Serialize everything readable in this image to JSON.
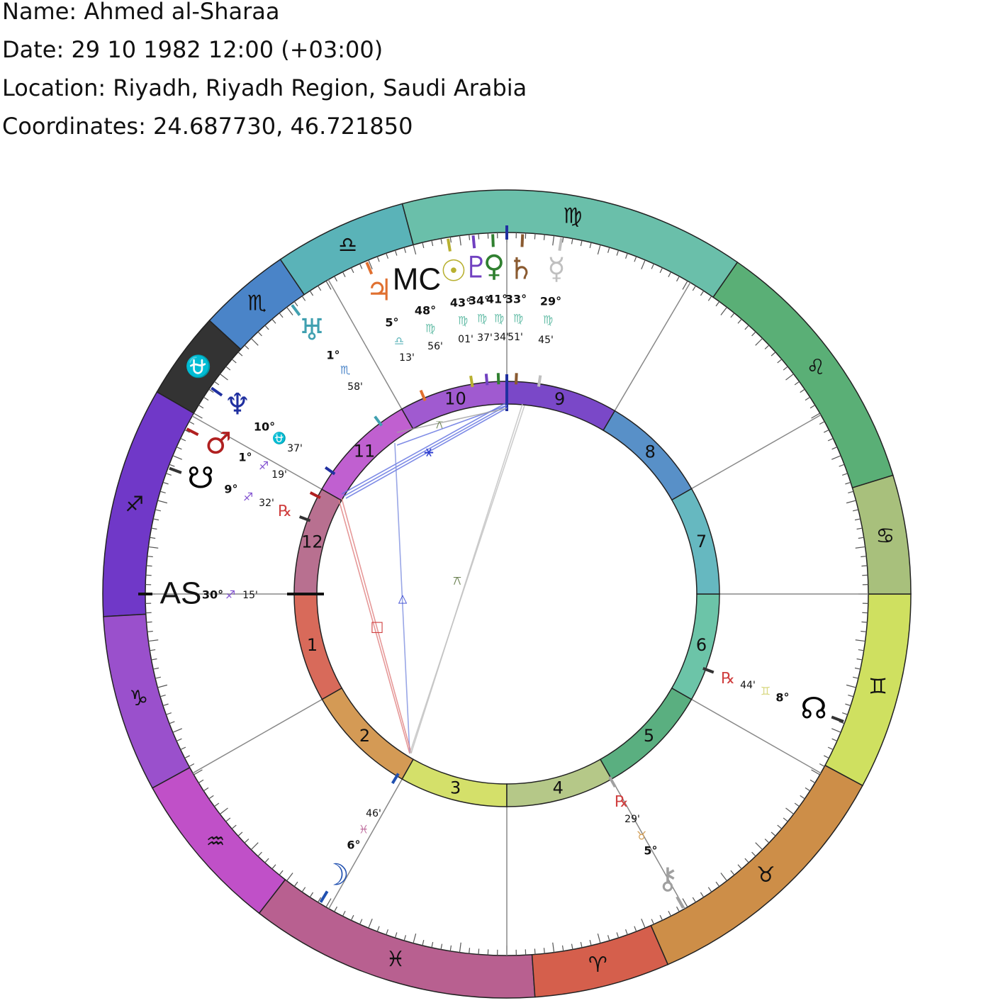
{
  "header": {
    "name": "Name: Ahmed al-Sharaa",
    "date": "Date: 29 10 1982 12:00 (+03:00)",
    "location": "Location: Riyadh, Riyadh Region, Saudi Arabia",
    "coordinates": "Coordinates: 24.687730, 46.721850"
  },
  "signs": {
    "glyphs": [
      "♊",
      "♋",
      "♌",
      "♍",
      "♎",
      "♏",
      "⛎",
      "♐",
      "♑",
      "♒",
      "♓",
      "♈",
      "♉"
    ],
    "colors": [
      "#cfe060",
      "#a8c07c",
      "#5aaf76",
      "#6abfaa",
      "#5ab3b8",
      "#4a84c8",
      "#333333",
      "#7038c8",
      "#9a50cc",
      "#c050c8",
      "#b86090",
      "#d55f4c",
      "#cd8e48"
    ]
  },
  "houses": {
    "labels": [
      "1",
      "2",
      "3",
      "4",
      "5",
      "6",
      "7",
      "8",
      "9",
      "10",
      "11",
      "12"
    ],
    "colors": [
      "#d86a5a",
      "#d49a55",
      "#d4e06a",
      "#b5c888",
      "#5aaf80",
      "#6cc4a8",
      "#66b8c0",
      "#5890c8",
      "#7a48c8",
      "#a05ad0",
      "#c060d0",
      "#b87090"
    ]
  },
  "angles": [
    {
      "label": "AS",
      "degree": "30°",
      "sign": "♐",
      "sign_color": "#8050d0",
      "minute": "15'"
    },
    {
      "label": "MC",
      "degree": "48°",
      "sign": "♍",
      "sign_color": "#6abfaa",
      "minute": "56'"
    }
  ],
  "planets": [
    {
      "glyph": "♃",
      "color": "#e07030",
      "degree": "5°",
      "sign": "♎",
      "sign_color": "#5ab3b8",
      "minute": "13'"
    },
    {
      "glyph": "☉",
      "color": "#b8b030",
      "degree": "43°",
      "sign": "♍",
      "sign_color": "#6abfaa",
      "minute": "01'"
    },
    {
      "glyph": "♇",
      "color": "#7040c0",
      "degree": "34°",
      "sign": "♍",
      "sign_color": "#6abfaa",
      "minute": "37'"
    },
    {
      "glyph": "♀",
      "color": "#308030",
      "degree": "41°",
      "sign": "♍",
      "sign_color": "#6abfaa",
      "minute": "34'"
    },
    {
      "glyph": "♄",
      "color": "#8a5a30",
      "degree": "33°",
      "sign": "♍",
      "sign_color": "#6abfaa",
      "minute": "51'"
    },
    {
      "glyph": "☿",
      "color": "#c0c0c0",
      "degree": "29°",
      "sign": "♍",
      "sign_color": "#6abfaa",
      "minute": "45'"
    },
    {
      "glyph": "♅",
      "color": "#40a0b0",
      "degree": "1°",
      "sign": "♏",
      "sign_color": "#4a84c8",
      "minute": "58'"
    },
    {
      "glyph": "♆",
      "color": "#2030a0",
      "degree": "10°",
      "sign": "⛎",
      "sign_color": "#888888",
      "minute": "37'"
    },
    {
      "glyph": "♂",
      "color": "#b02020",
      "degree": "1°",
      "sign": "♐",
      "sign_color": "#8050d0",
      "minute": "19'"
    },
    {
      "glyph": "☋",
      "color": "#000000",
      "degree": "9°",
      "sign": "♐",
      "sign_color": "#8050d0",
      "minute": "32'",
      "retro": "℞"
    },
    {
      "glyph": "☊",
      "color": "#000000",
      "degree": "8°",
      "sign": "♊",
      "sign_color": "#d8d880",
      "minute": "44'",
      "retro": "℞"
    },
    {
      "glyph": "⚷",
      "color": "#a0a0a0",
      "degree": "5°",
      "sign": "♉",
      "sign_color": "#d09a50",
      "minute": "29'",
      "retro": "℞"
    },
    {
      "glyph": "☽",
      "color": "#2050b0",
      "degree": "6°",
      "sign": "♓",
      "sign_color": "#c070a0",
      "minute": "46'"
    }
  ],
  "aspects": [
    {
      "glyph": "△",
      "color": "#3040d0"
    },
    {
      "glyph": "□",
      "color": "#d04040"
    },
    {
      "glyph": "⚹",
      "color": "#3040d0"
    },
    {
      "glyph": "⚻",
      "color": "#6a8050"
    },
    {
      "glyph": "⚻",
      "color": "#6a8050"
    }
  ]
}
